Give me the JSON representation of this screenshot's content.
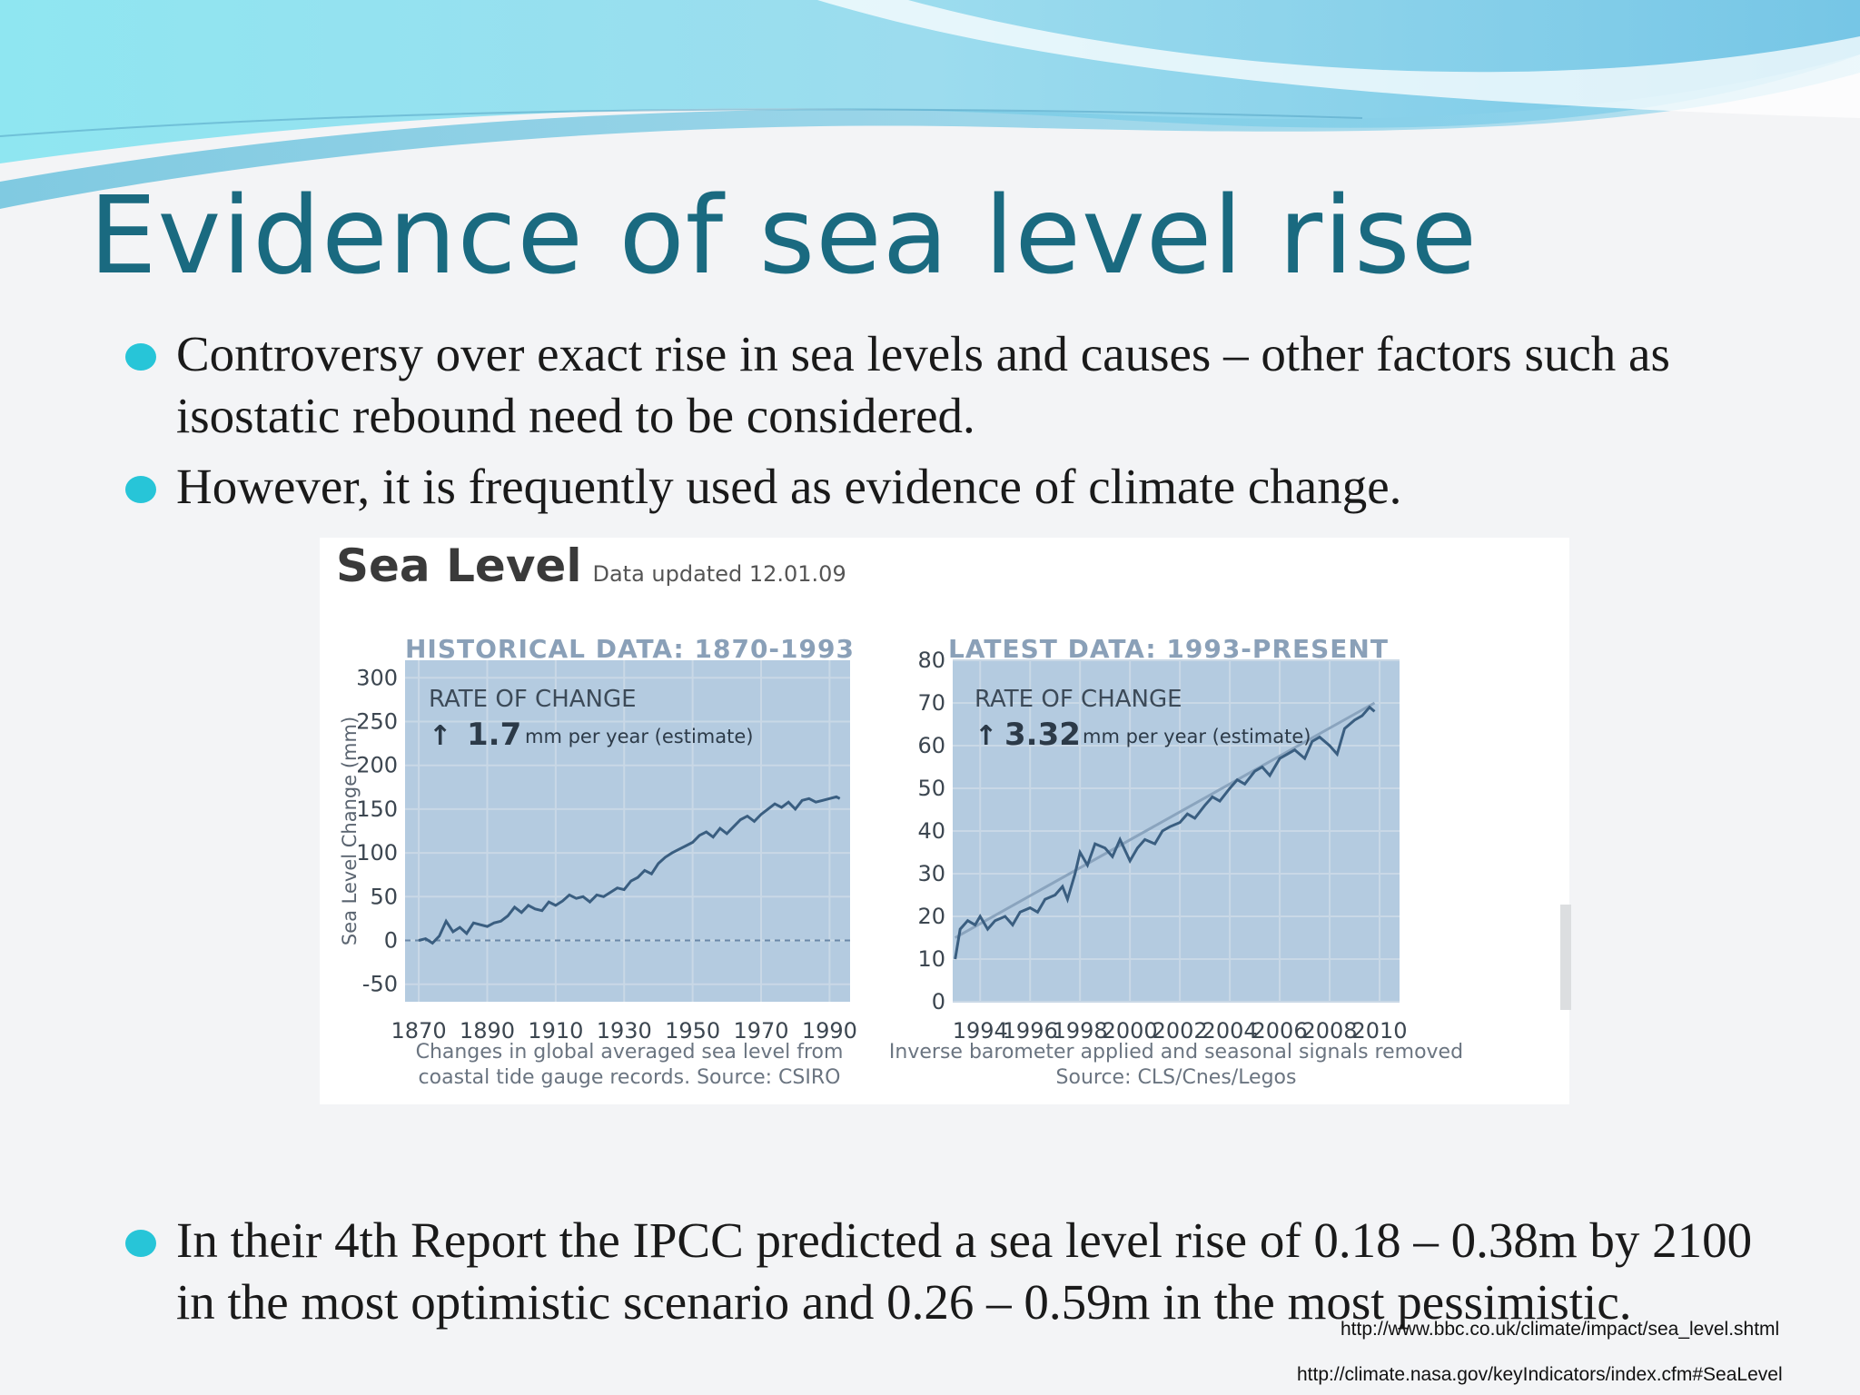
{
  "slide": {
    "title": "Evidence of sea level rise",
    "bullets": [
      "Controversy over exact rise in sea levels and causes – other factors such as isostatic rebound need to be considered.",
      "However, it is frequently used as evidence of climate change.",
      "In their 4th Report the IPCC predicted a sea level rise of 0.18 – 0.38m by 2100 in the most optimistic scenario and 0.26 – 0.59m in the most pessimistic."
    ],
    "sources": [
      "http://www.bbc.co.uk/climate/impact/sea_level.shtml",
      "http://climate.nasa.gov/keyIndicators/index.cfm#SeaLevel"
    ],
    "colors": {
      "title": "#1a6a80",
      "bullet": "#27c5d8",
      "plot_bg": "#b4cbe0",
      "line": "#3a5e80"
    }
  },
  "figure": {
    "heading": "Sea Level",
    "updated": "Data updated 12.01.09"
  },
  "chart_data": [
    {
      "type": "line",
      "title": "HISTORICAL DATA: 1870-1993",
      "rate_label": "RATE OF CHANGE",
      "rate_value": "1.7",
      "rate_unit": "mm per year (estimate)",
      "ylabel": "Sea Level Change (mm)",
      "xlabel": "",
      "xlim": [
        1866,
        1996
      ],
      "ylim": [
        -70,
        320
      ],
      "xticks": [
        1870,
        1890,
        1910,
        1930,
        1950,
        1970,
        1990
      ],
      "yticks": [
        -50,
        0,
        50,
        100,
        150,
        200,
        250,
        300
      ],
      "caption": [
        "Changes in global averaged sea level from",
        "coastal tide gauge records. Source: CSIRO"
      ],
      "series": [
        {
          "x": [
            1870,
            1872,
            1874,
            1876,
            1878,
            1880,
            1882,
            1884,
            1886,
            1888,
            1890,
            1892,
            1894,
            1896,
            1898,
            1900,
            1902,
            1904,
            1906,
            1908,
            1910,
            1912,
            1914,
            1916,
            1918,
            1920,
            1922,
            1924,
            1926,
            1928,
            1930,
            1932,
            1934,
            1936,
            1938,
            1940,
            1942,
            1944,
            1946,
            1948,
            1950,
            1952,
            1954,
            1956,
            1958,
            1960,
            1962,
            1964,
            1966,
            1968,
            1970,
            1972,
            1974,
            1976,
            1978,
            1980,
            1982,
            1984,
            1986,
            1988,
            1990,
            1992,
            1993
          ],
          "values": [
            0,
            2,
            -3,
            5,
            22,
            10,
            15,
            8,
            20,
            18,
            16,
            20,
            22,
            28,
            38,
            32,
            40,
            36,
            34,
            44,
            40,
            45,
            52,
            48,
            50,
            44,
            52,
            50,
            55,
            60,
            58,
            68,
            72,
            80,
            76,
            88,
            95,
            100,
            104,
            108,
            112,
            120,
            124,
            118,
            128,
            122,
            130,
            138,
            142,
            136,
            144,
            150,
            156,
            152,
            158,
            150,
            160,
            162,
            158,
            160,
            162,
            164,
            162
          ]
        }
      ]
    },
    {
      "type": "line",
      "title": "LATEST DATA: 1993-PRESENT",
      "rate_label": "RATE OF CHANGE",
      "rate_value": "3.32",
      "rate_unit": "mm per year (estimate)",
      "ylabel": "",
      "xlabel": "",
      "xlim": [
        1992.9,
        2010.8
      ],
      "ylim": [
        0,
        80
      ],
      "xticks": [
        1994,
        1996,
        1998,
        2000,
        2002,
        2004,
        2006,
        2008,
        2010
      ],
      "yticks": [
        0,
        10,
        20,
        30,
        40,
        50,
        60,
        70,
        80
      ],
      "caption": [
        "Inverse barometer applied and seasonal signals removed",
        "Source: CLS/Cnes/Legos"
      ],
      "trend": {
        "x": [
          1993,
          2009.8
        ],
        "values": [
          15,
          70
        ]
      },
      "series": [
        {
          "x": [
            1993,
            1993.2,
            1993.5,
            1993.8,
            1994,
            1994.3,
            1994.6,
            1995,
            1995.3,
            1995.6,
            1996,
            1996.3,
            1996.6,
            1997,
            1997.3,
            1997.5,
            1997.8,
            1998,
            1998.3,
            1998.6,
            1999,
            1999.3,
            1999.6,
            2000,
            2000.3,
            2000.6,
            2001,
            2001.3,
            2001.6,
            2002,
            2002.3,
            2002.6,
            2003,
            2003.3,
            2003.6,
            2004,
            2004.3,
            2004.6,
            2005,
            2005.3,
            2005.6,
            2006,
            2006.3,
            2006.6,
            2007,
            2007.3,
            2007.6,
            2008,
            2008.3,
            2008.6,
            2009,
            2009.3,
            2009.6,
            2009.8
          ],
          "values": [
            10,
            17,
            19,
            18,
            20,
            17,
            19,
            20,
            18,
            21,
            22,
            21,
            24,
            25,
            27,
            24,
            30,
            35,
            32,
            37,
            36,
            34,
            38,
            33,
            36,
            38,
            37,
            40,
            41,
            42,
            44,
            43,
            46,
            48,
            47,
            50,
            52,
            51,
            54,
            55,
            53,
            57,
            58,
            59,
            57,
            61,
            62,
            60,
            58,
            64,
            66,
            67,
            69,
            68
          ]
        }
      ]
    }
  ]
}
